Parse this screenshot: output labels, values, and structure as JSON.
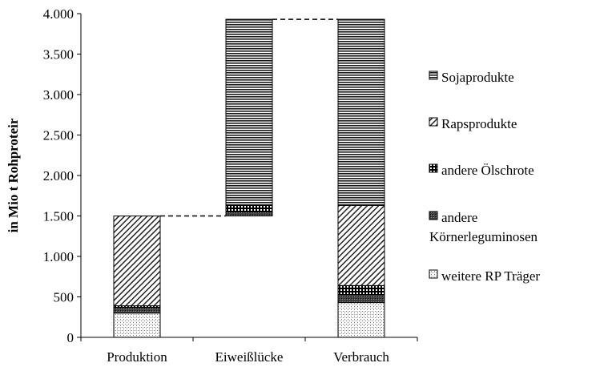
{
  "chart_data": {
    "type": "bar",
    "stacked": true,
    "waterfall": true,
    "title": "",
    "xlabel": "",
    "ylabel": "in Mio t Rohproteir",
    "ylim": [
      0,
      4000
    ],
    "yticks": [
      0,
      500,
      1000,
      1500,
      2000,
      2500,
      3000,
      3500,
      4000
    ],
    "ytick_labels": [
      "0",
      "500",
      "1.000",
      "1.500",
      "2.000",
      "2.500",
      "3.000",
      "3.500",
      "4.000"
    ],
    "categories": [
      "Produktion",
      "Eiweißlücke",
      "Verbrauch"
    ],
    "base": [
      0,
      1500,
      0
    ],
    "series": [
      {
        "name": "weitere RP Träger",
        "pattern": "dots",
        "values": [
          300,
          0,
          430
        ]
      },
      {
        "name": "andere Körnerleguminosen",
        "pattern": "dense-cross",
        "values": [
          70,
          50,
          100
        ]
      },
      {
        "name": "andere Ölschrote",
        "pattern": "grid",
        "values": [
          20,
          80,
          110
        ]
      },
      {
        "name": "Rapsprodukte",
        "pattern": "diagonal",
        "values": [
          1110,
          0,
          990
        ]
      },
      {
        "name": "Sojaprodukte",
        "pattern": "horizontal",
        "values": [
          0,
          2300,
          2300
        ]
      }
    ],
    "connectors": [
      {
        "from": "Produktion",
        "to": "Eiweißlücke",
        "value": 1500
      },
      {
        "from": "Eiweißlücke",
        "to": "Verbrauch",
        "value": 3930
      }
    ],
    "legend_order": [
      "Sojaprodukte",
      "Rapsprodukte",
      "andere Ölschrote",
      "andere Körnerleguminosen",
      "weitere RP Träger"
    ],
    "legend_labels": [
      [
        "Sojaprodukte"
      ],
      [
        "Rapsprodukte"
      ],
      [
        "andere Ölschrote"
      ],
      [
        "andere",
        "Körnerleguminosen"
      ],
      [
        "weitere RP Träger"
      ]
    ],
    "legend_position": "right",
    "grid": false
  }
}
